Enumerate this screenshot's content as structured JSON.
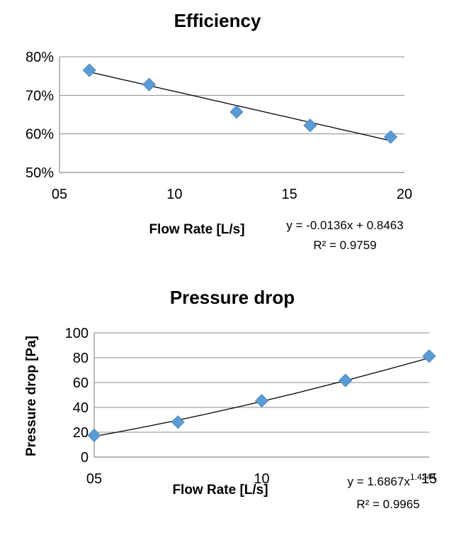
{
  "chart_data": [
    {
      "type": "scatter",
      "title": "Efficiency",
      "xlabel": "Flow Rate [L/s]",
      "ylabel": "",
      "xlim": [
        5,
        20
      ],
      "ylim": [
        0.5,
        0.8
      ],
      "x_ticks": [
        5,
        10,
        15,
        20
      ],
      "x_tick_labels": [
        "05",
        "10",
        "15",
        "20"
      ],
      "y_ticks": [
        0.5,
        0.6,
        0.7,
        0.8
      ],
      "y_tick_labels": [
        "50%",
        "60%",
        "70%",
        "80%"
      ],
      "grid": true,
      "legend": "none",
      "marker_color": "#5b9bd5",
      "series": [
        {
          "x": [
            6.3,
            8.9,
            12.7,
            15.9,
            19.4
          ],
          "y": [
            0.765,
            0.728,
            0.657,
            0.622,
            0.592
          ]
        }
      ],
      "trendline": {
        "kind": "linear",
        "slope": -0.0136,
        "intercept": 0.8463,
        "x_range": [
          6.3,
          19.4
        ]
      },
      "trendline_equation": "y = -0.0136x + 0.8463",
      "r_squared": "R² = 0.9759"
    },
    {
      "type": "scatter",
      "title": "Pressure drop",
      "xlabel": "Flow Rate [L/s]",
      "ylabel": "Pressure drop [Pa]",
      "xlim": [
        5,
        15
      ],
      "ylim": [
        0,
        100
      ],
      "x_ticks": [
        5,
        10,
        15
      ],
      "x_tick_labels": [
        "05",
        "10",
        "15"
      ],
      "y_ticks": [
        0,
        20,
        40,
        60,
        80,
        100
      ],
      "y_tick_labels": [
        "0",
        "20",
        "40",
        "60",
        "80",
        "100"
      ],
      "grid": true,
      "legend": "none",
      "marker_color": "#5b9bd5",
      "series": [
        {
          "x": [
            5,
            7.5,
            10,
            12.5,
            15
          ],
          "y": [
            17.5,
            28.2,
            45.3,
            61.7,
            81.3
          ]
        }
      ],
      "trendline": {
        "kind": "power",
        "coef": 1.6867,
        "exponent": 1.4244,
        "x_range": [
          5,
          15
        ]
      },
      "trendline_equation": {
        "base": "y = 1.6867x",
        "exponent": "1.4244"
      },
      "r_squared": "R² = 0.9965"
    }
  ]
}
